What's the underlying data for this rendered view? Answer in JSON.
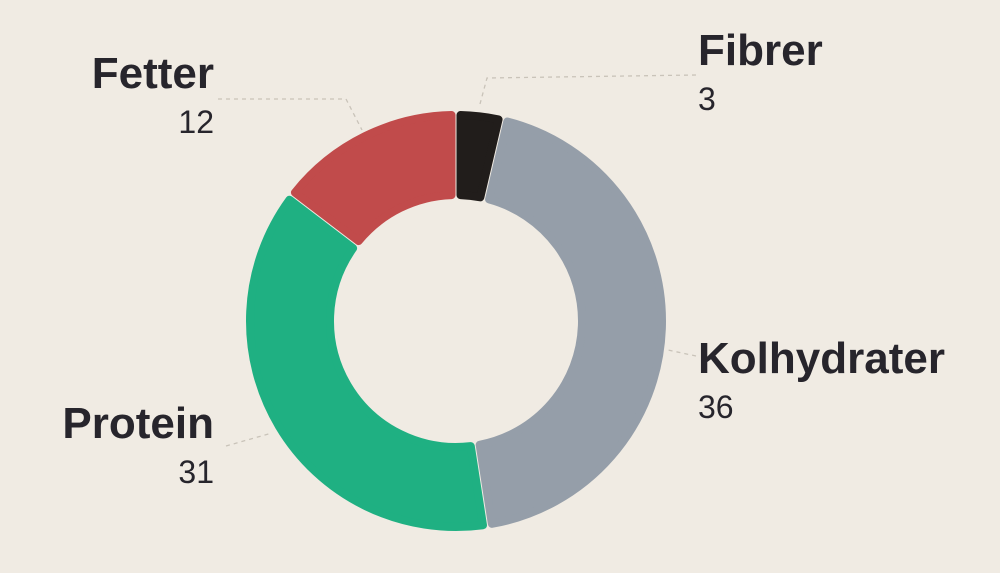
{
  "chart_data": {
    "type": "pie",
    "variant": "donut",
    "title": "",
    "categories": [
      "Fibrer",
      "Kolhydrater",
      "Protein",
      "Fetter"
    ],
    "values": [
      3,
      36,
      31,
      12
    ],
    "value_labels": [
      "3",
      "36",
      "31",
      "12"
    ],
    "colors": [
      "#211d1b",
      "#959ea9",
      "#1fb082",
      "#c14b4b"
    ],
    "legend": "none"
  }
}
